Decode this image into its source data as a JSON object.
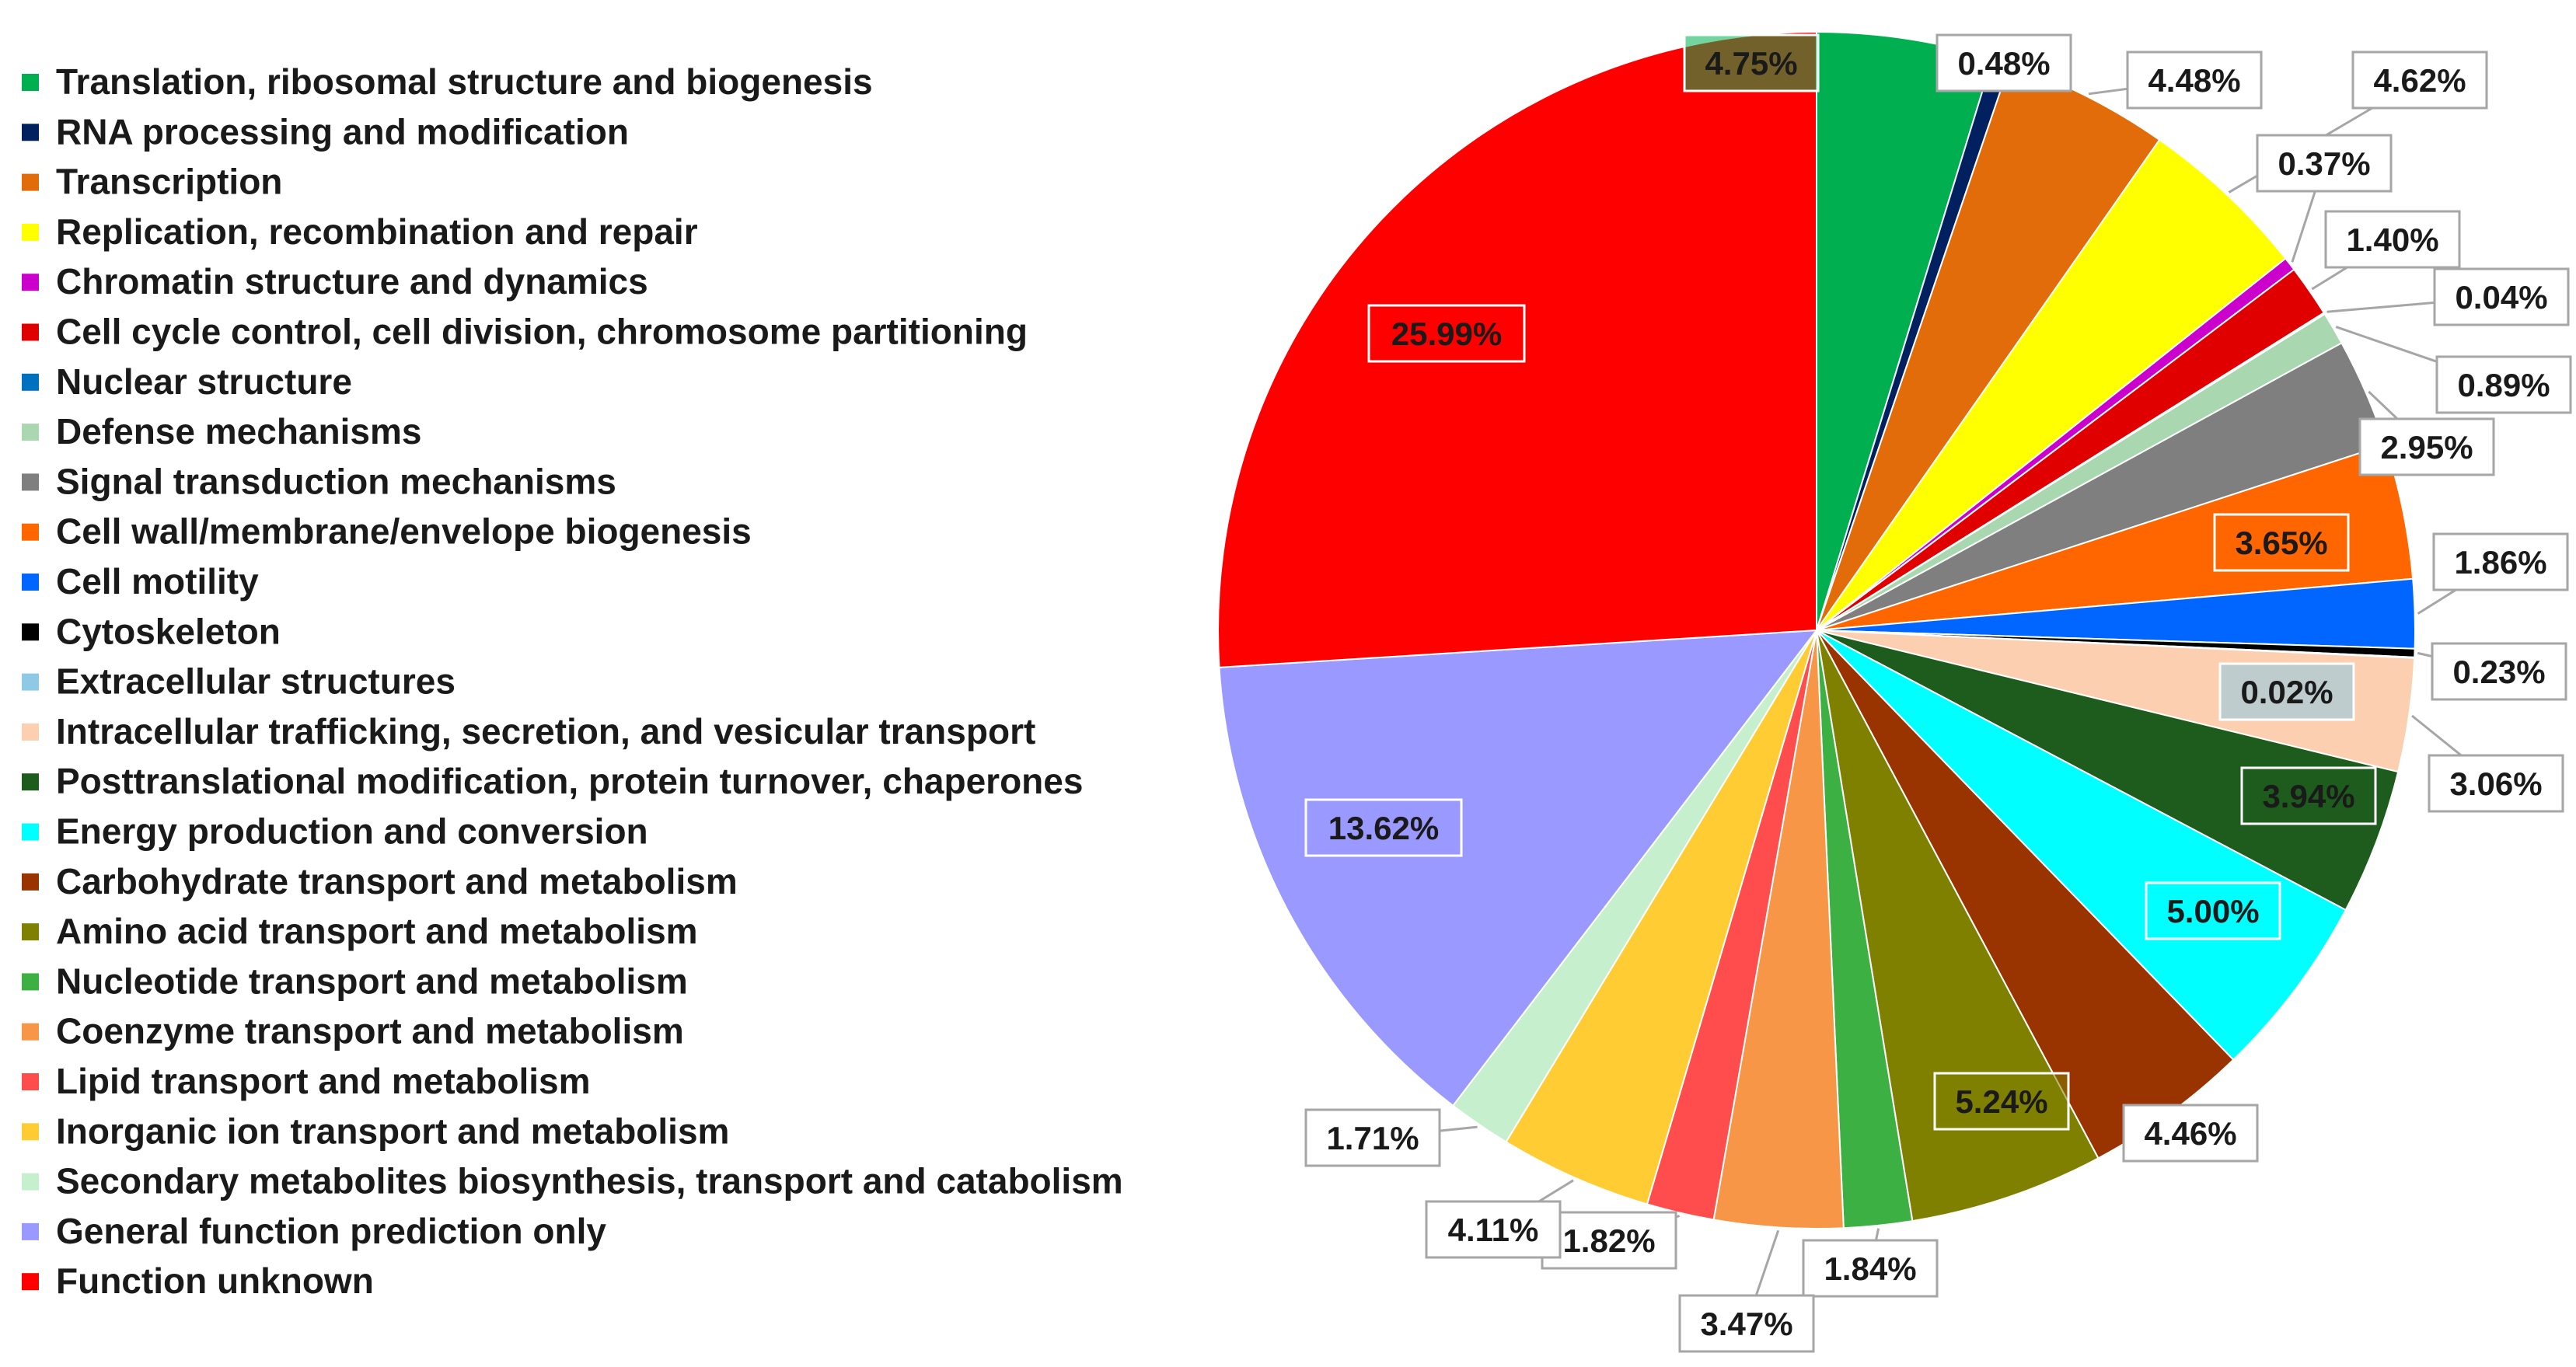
{
  "chart_data": {
    "type": "pie",
    "title": "",
    "legend_position": "left",
    "slices": [
      {
        "name": "Translation, ribosomal structure and biogenesis",
        "value": 4.75,
        "label": "4.75%",
        "color": "#00b050"
      },
      {
        "name": "RNA processing and modification",
        "value": 0.48,
        "label": "0.48%",
        "color": "#002060"
      },
      {
        "name": "Transcription",
        "value": 4.48,
        "label": "4.48%",
        "color": "#e36c0a"
      },
      {
        "name": "Replication, recombination and repair",
        "value": 4.62,
        "label": "4.62%",
        "color": "#ffff00"
      },
      {
        "name": "Chromatin structure and dynamics",
        "value": 0.37,
        "label": "0.37%",
        "color": "#cc00cc"
      },
      {
        "name": "Cell cycle control, cell division, chromosome partitioning",
        "value": 1.4,
        "label": "1.40%",
        "color": "#e00000"
      },
      {
        "name": "Nuclear structure",
        "value": 0.04,
        "label": "0.04%",
        "color": "#0070c0"
      },
      {
        "name": "Defense mechanisms",
        "value": 0.89,
        "label": "0.89%",
        "color": "#a9d8b0"
      },
      {
        "name": "Signal transduction mechanisms",
        "value": 2.95,
        "label": "2.95%",
        "color": "#7f7f7f"
      },
      {
        "name": "Cell wall/membrane/envelope biogenesis",
        "value": 3.65,
        "label": "3.65%",
        "color": "#ff6600"
      },
      {
        "name": "Cell motility",
        "value": 1.86,
        "label": "1.86%",
        "color": "#0066ff"
      },
      {
        "name": "Cytoskeleton",
        "value": 0.23,
        "label": "0.23%",
        "color": "#000000"
      },
      {
        "name": "Extracellular structures",
        "value": 0.02,
        "label": "0.02%",
        "color": "#8ecae6"
      },
      {
        "name": "Intracellular trafficking, secretion, and vesicular transport",
        "value": 3.06,
        "label": "3.06%",
        "color": "#fbcfb0"
      },
      {
        "name": "Posttranslational modification, protein turnover, chaperones",
        "value": 3.94,
        "label": "3.94%",
        "color": "#1e5c1e"
      },
      {
        "name": "Energy production and conversion",
        "value": 5.0,
        "label": "5.00%",
        "color": "#00ffff"
      },
      {
        "name": "Carbohydrate transport and metabolism",
        "value": 4.46,
        "label": "4.46%",
        "color": "#993300"
      },
      {
        "name": "Amino acid transport and metabolism",
        "value": 5.24,
        "label": "5.24%",
        "color": "#808000"
      },
      {
        "name": "Nucleotide transport and metabolism",
        "value": 1.84,
        "label": "1.84%",
        "color": "#3cb043"
      },
      {
        "name": "Coenzyme transport and metabolism",
        "value": 3.47,
        "label": "3.47%",
        "color": "#f79646"
      },
      {
        "name": "Lipid transport and metabolism",
        "value": 1.82,
        "label": "1.82%",
        "color": "#ff4d4d"
      },
      {
        "name": "Inorganic ion transport and metabolism",
        "value": 4.11,
        "label": "4.11%",
        "color": "#ffcc33"
      },
      {
        "name": "Secondary metabolites biosynthesis, transport and catabolism",
        "value": 1.71,
        "label": "1.71%",
        "color": "#c6efce"
      },
      {
        "name": "General function prediction only",
        "value": 13.62,
        "label": "13.62%",
        "color": "#9999ff"
      },
      {
        "name": "Function unknown",
        "value": 25.99,
        "label": "25.99%",
        "color": "#ff0000"
      }
    ]
  }
}
